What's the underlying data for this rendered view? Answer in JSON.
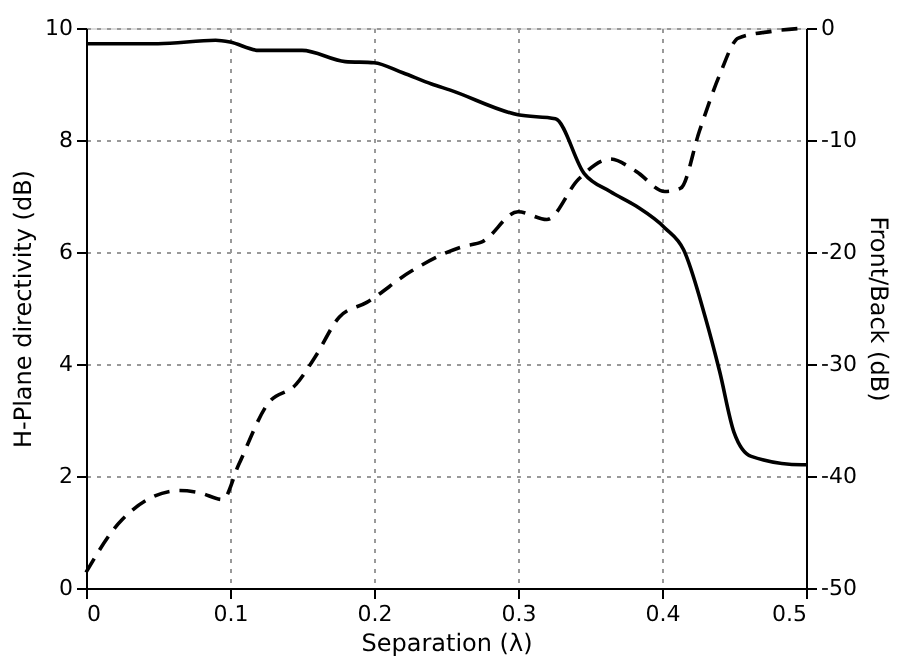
{
  "chart_data": {
    "type": "line",
    "xlabel": "Separation (λ)",
    "ylabel": "H-Plane directivity (dB)",
    "y2label": "Front/Back (dB)",
    "xlim": [
      0,
      0.5
    ],
    "xticks": [
      0,
      0.1,
      0.2,
      0.3,
      0.4,
      0.5
    ],
    "ylim": [
      0,
      10
    ],
    "yticks": [
      0,
      2,
      4,
      6,
      8,
      10
    ],
    "y2lim": [
      -50,
      0
    ],
    "y2ticks": [
      -50,
      -40,
      -30,
      -20,
      -10,
      0
    ],
    "grid": true,
    "series": [
      {
        "color": "#000000",
        "line_style": "solid",
        "x": [
          0,
          0.05,
          0.09,
          0.1,
          0.12,
          0.15,
          0.18,
          0.2,
          0.22,
          0.24,
          0.253,
          0.3,
          0.326,
          0.346,
          0.364,
          0.382,
          0.402,
          0.415,
          0.43,
          0.44,
          0.45,
          0.462,
          0.497,
          0.5
        ],
        "values": [
          9.72,
          9.72,
          9.78,
          9.75,
          9.6,
          9.6,
          9.4,
          9.38,
          9.2,
          9.0,
          8.89,
          8.45,
          8.38,
          7.4,
          7.08,
          6.82,
          6.43,
          6.04,
          4.84,
          3.87,
          2.78,
          2.35,
          2.2,
          2.2
        ]
      },
      {
        "color": "#000000",
        "line_style": "dashed",
        "axis": "y2",
        "x": [
          0,
          0.025,
          0.065,
          0.079,
          0.095,
          0.106,
          0.126,
          0.146,
          0.159,
          0.176,
          0.195,
          0.226,
          0.262,
          0.275,
          0.3,
          0.32,
          0.342,
          0.364,
          0.382,
          0.402,
          0.413,
          0.426,
          0.44,
          0.453,
          0.476,
          0.5
        ],
        "values": [
          -48.6,
          -43.9,
          -41.3,
          -41.5,
          -42.1,
          -39,
          -33.6,
          -31.8,
          -29.4,
          -25.8,
          -24.5,
          -21.7,
          -19.5,
          -19.1,
          -16.4,
          -17.1,
          -13.5,
          -11.7,
          -12.8,
          -14.6,
          -14.3,
          -9.2,
          -4.2,
          -0.9,
          -0.3,
          0
        ]
      }
    ]
  }
}
